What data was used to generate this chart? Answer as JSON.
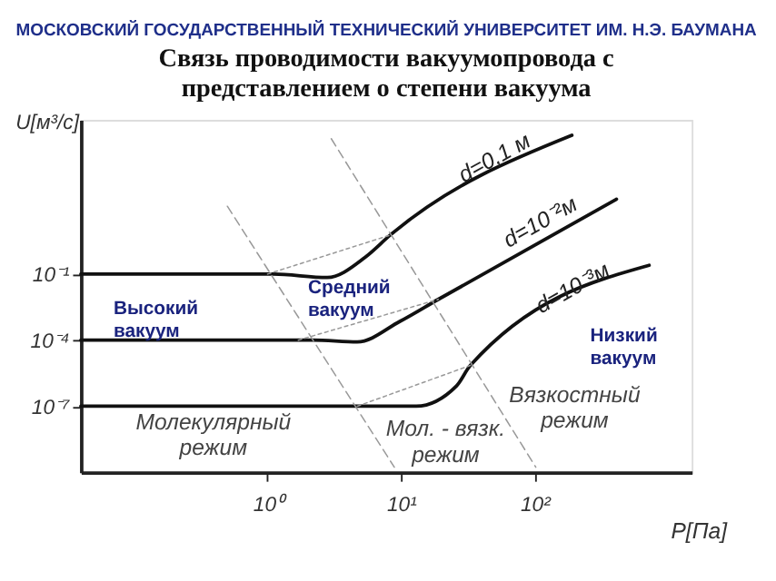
{
  "chart_data": {
    "type": "line",
    "title": "Связь проводимости  вакуумопровода с представлением о степени вакуума",
    "xlabel": "P[Па]",
    "ylabel": "U[м³/с]",
    "log": "xy",
    "grid": false,
    "legend": false,
    "marker": "none",
    "xlim": [
      0.04,
      1500
    ],
    "ylim": [
      1e-10,
      1000000.0
    ],
    "xticks": [
      {
        "value": 1,
        "label": "10⁰"
      },
      {
        "value": 10,
        "label": "10¹"
      },
      {
        "value": 100,
        "label": "10²"
      }
    ],
    "yticks": [
      {
        "value": 1e-07,
        "label": "10⁻⁷"
      },
      {
        "value": 0.0001,
        "label": "10⁻⁴"
      },
      {
        "value": 0.1,
        "label": "10⁻¹"
      }
    ],
    "series": [
      {
        "name": "d=0,1 м",
        "color": "#111111",
        "line_style": "solid",
        "x": [
          0.04,
          1.1,
          2.8,
          5.4,
          8.3,
          190
        ],
        "values": [
          0.1,
          0.1,
          0.07,
          0.59,
          5.9,
          200000
        ]
      },
      {
        "name": "d=10⁻²м",
        "color": "#111111",
        "line_style": "solid",
        "x": [
          0.04,
          2.2,
          4.7,
          9.8,
          19,
          410
        ],
        "values": [
          0.0001,
          0.0001,
          8.3e-05,
          0.00071,
          0.0071,
          250
        ]
      },
      {
        "name": "d=10⁻³м",
        "color": "#111111",
        "line_style": "solid",
        "x": [
          0.04,
          13,
          26,
          33,
          720
        ],
        "values": [
          1e-07,
          1e-07,
          8.3e-07,
          7.1e-06,
          0.25
        ]
      },
      {
        "color": "#999999",
        "line_style": "dashed",
        "x": [
          0.5,
          8.9
        ],
        "values": [
          120,
          1.7e-10
        ]
      },
      {
        "color": "#999999",
        "line_style": "dashed",
        "x": [
          3,
          102
        ],
        "values": [
          140000,
          1.7e-10
        ]
      },
      {
        "color": "#999999",
        "line_style": "dotted",
        "x": [
          1,
          8.3
        ],
        "values": [
          0.1,
          5.9
        ]
      },
      {
        "color": "#999999",
        "line_style": "dotted",
        "x": [
          1.7,
          19
        ],
        "values": [
          0.0001,
          0.0071
        ]
      },
      {
        "color": "#999999",
        "line_style": "dotted",
        "x": [
          4.7,
          33
        ],
        "values": [
          1e-07,
          7.1e-06
        ]
      }
    ],
    "annotations": [
      "МОСКОВСКИЙ ГОСУДАРСТВЕННЫЙ ТЕХНИЧЕСКИЙ УНИВЕРСИТЕТ ИМ. Н.Э. БАУМАНА",
      "Высокий вакуум",
      "Средний вакуум",
      "Низкий вакуум",
      "Молекулярный режим",
      "Мол. - вязк. режим",
      "Вязкостный режим"
    ]
  }
}
